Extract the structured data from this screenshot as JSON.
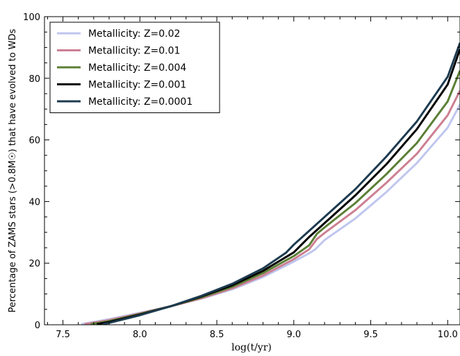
{
  "chart_data": {
    "type": "line",
    "xlabel": "log(t/yr)",
    "ylabel": "Percentage of ZAMS stars (>0.8M☉) that have evolved to WDs",
    "xlim": [
      7.38,
      10.08
    ],
    "ylim": [
      0,
      100
    ],
    "xticks": [
      "7.5",
      "8.0",
      "8.5",
      "9.0",
      "9.5",
      "10.0"
    ],
    "yticks": [
      "0",
      "20",
      "40",
      "60",
      "80",
      "100"
    ],
    "legend_position": "top-left",
    "grid": false,
    "series": [
      {
        "name": "Metallicity: Z=0.02",
        "color": "#bfc6ee",
        "x": [
          7.62,
          7.8,
          8.0,
          8.2,
          8.4,
          8.6,
          8.8,
          9.0,
          9.1,
          9.14,
          9.2,
          9.4,
          9.6,
          9.8,
          10.0,
          10.08
        ],
        "y": [
          0.2,
          1.8,
          3.9,
          6.0,
          8.5,
          11.5,
          15.5,
          20.5,
          23.2,
          24.5,
          27.5,
          34.5,
          43.0,
          52.5,
          64.0,
          71.5
        ]
      },
      {
        "name": "Metallicity: Z=0.01",
        "color": "#cc7f92",
        "x": [
          7.64,
          7.8,
          8.0,
          8.2,
          8.4,
          8.6,
          8.8,
          9.0,
          9.1,
          9.15,
          9.2,
          9.4,
          9.6,
          9.8,
          10.0,
          10.08
        ],
        "y": [
          0.2,
          1.5,
          3.7,
          6.0,
          8.6,
          11.8,
          16.0,
          21.3,
          24.5,
          27.8,
          29.8,
          37.2,
          46.0,
          55.5,
          68.0,
          76.0
        ]
      },
      {
        "name": "Metallicity: Z=0.004",
        "color": "#5b7f35",
        "x": [
          7.68,
          7.8,
          8.0,
          8.2,
          8.4,
          8.6,
          8.8,
          9.0,
          9.1,
          9.15,
          9.2,
          9.4,
          9.6,
          9.8,
          10.0,
          10.08
        ],
        "y": [
          0.2,
          1.2,
          3.5,
          6.0,
          8.9,
          12.3,
          16.8,
          22.3,
          25.8,
          29.5,
          31.6,
          39.5,
          48.8,
          59.0,
          72.5,
          82.5
        ]
      },
      {
        "name": "Metallicity: Z=0.001",
        "color": "#000000",
        "x": [
          7.72,
          7.8,
          8.0,
          8.2,
          8.4,
          8.6,
          8.8,
          9.0,
          9.05,
          9.1,
          9.2,
          9.4,
          9.6,
          9.8,
          10.0,
          10.08
        ],
        "y": [
          0.2,
          0.9,
          3.3,
          6.0,
          9.2,
          12.8,
          17.5,
          23.5,
          26.0,
          28.5,
          33.0,
          42.0,
          52.0,
          63.5,
          78.0,
          89.5
        ]
      },
      {
        "name": "Metallicity: Z=0.0001",
        "color": "#1d3b50",
        "x": [
          7.76,
          7.8,
          8.0,
          8.2,
          8.4,
          8.6,
          8.8,
          8.95,
          9.0,
          9.1,
          9.2,
          9.4,
          9.6,
          9.8,
          10.0,
          10.08
        ],
        "y": [
          0.2,
          0.6,
          3.1,
          6.0,
          9.4,
          13.3,
          18.3,
          23.4,
          26.0,
          30.5,
          35.0,
          44.0,
          54.5,
          66.0,
          80.5,
          91.5
        ]
      }
    ]
  }
}
